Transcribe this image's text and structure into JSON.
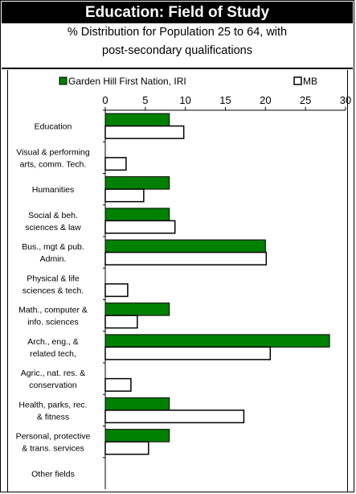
{
  "title": "Education: Field of Study",
  "subtitle_line1": "% Distribution for Population 25 to 64, with",
  "subtitle_line2": "post-secondary qualifications",
  "chart_data": {
    "type": "bar",
    "orientation": "horizontal",
    "xlim": [
      0,
      30
    ],
    "xticks": [
      0,
      5,
      10,
      15,
      20,
      25,
      30
    ],
    "grid": false,
    "legend_position": "top",
    "categories": [
      [
        "Education"
      ],
      [
        "Visual & performing",
        "arts, comm. Tech."
      ],
      [
        "Humanities"
      ],
      [
        "Social & beh.",
        "sciences & law"
      ],
      [
        "Bus., mgt & pub.",
        "Admin."
      ],
      [
        "Physical & life",
        "sciences & tech."
      ],
      [
        "Math., computer &",
        "info. sciences"
      ],
      [
        "Arch., eng., &",
        "related tech,"
      ],
      [
        "Agric., nat. res. &",
        "conservation"
      ],
      [
        "Health, parks, rec.",
        "& fitness"
      ],
      [
        "Personal, protective",
        "& trans. services"
      ],
      [
        "Other fields"
      ]
    ],
    "series": [
      {
        "name": "Garden Hill First Nation, IRI",
        "color": "#008000",
        "values": [
          8,
          0,
          8,
          8,
          20,
          0,
          8,
          28,
          0,
          8,
          8,
          0
        ]
      },
      {
        "name": "MB",
        "color": "#ffffff",
        "values": [
          9.8,
          2.6,
          4.8,
          8.7,
          20.1,
          2.8,
          4.0,
          20.6,
          3.2,
          17.3,
          5.4,
          0
        ]
      }
    ]
  }
}
